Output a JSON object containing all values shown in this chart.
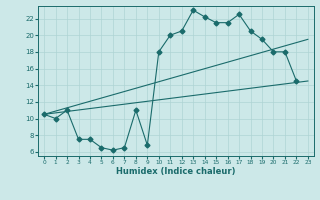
{
  "xlabel": "Humidex (Indice chaleur)",
  "bg_color": "#cce8e8",
  "line_color": "#1a6b6b",
  "xlim": [
    -0.5,
    23.5
  ],
  "ylim": [
    5.5,
    23.5
  ],
  "xticks": [
    0,
    1,
    2,
    3,
    4,
    5,
    6,
    7,
    8,
    9,
    10,
    11,
    12,
    13,
    14,
    15,
    16,
    17,
    18,
    19,
    20,
    21,
    22,
    23
  ],
  "yticks": [
    6,
    8,
    10,
    12,
    14,
    16,
    18,
    20,
    22
  ],
  "curve1_x": [
    0,
    1,
    2,
    3,
    4,
    5,
    6,
    7,
    8,
    9,
    10,
    11,
    12,
    13,
    14,
    15,
    16,
    17,
    18,
    19,
    20,
    21,
    22
  ],
  "curve1_y": [
    10.5,
    10.0,
    11.0,
    7.5,
    7.5,
    6.5,
    6.2,
    6.5,
    11.0,
    6.8,
    18.0,
    20.0,
    20.5,
    23.0,
    22.2,
    21.5,
    21.5,
    22.5,
    20.5,
    19.5,
    18.0,
    18.0,
    14.5
  ],
  "curve2_x": [
    0,
    23
  ],
  "curve2_y": [
    10.5,
    19.5
  ],
  "curve3_x": [
    0,
    23
  ],
  "curve3_y": [
    10.5,
    14.5
  ],
  "grid_color": "#afd4d4",
  "markersize": 2.5,
  "linewidth": 0.8
}
